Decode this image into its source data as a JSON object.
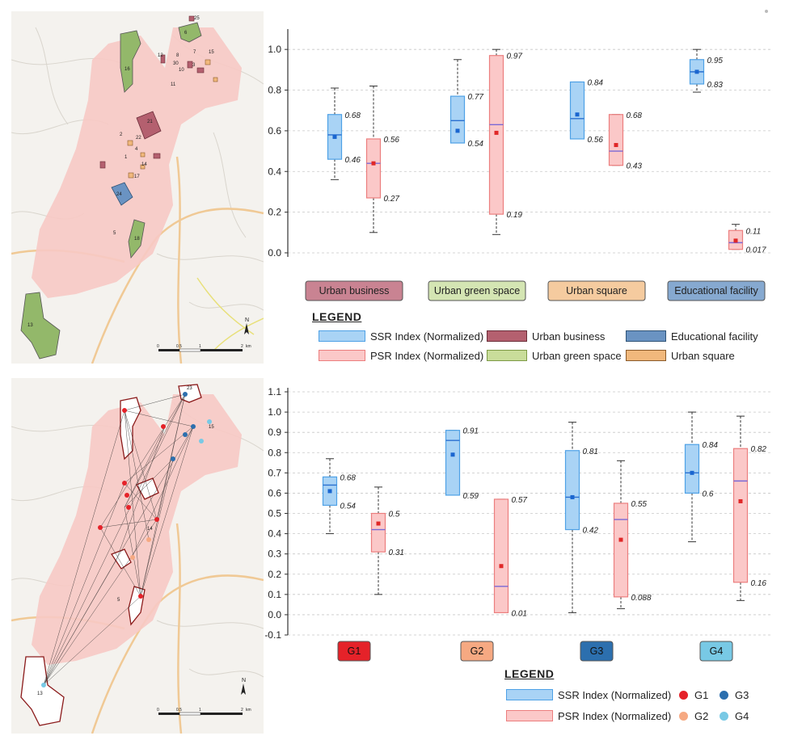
{
  "colors": {
    "ssr_fill": "#a9d3f5",
    "ssr_stroke": "#4ea1e6",
    "ssr_median": "#2a6fd0",
    "ssr_mean": "#1a66d0",
    "psr_fill": "#fbc8c8",
    "psr_stroke": "#ec7e7e",
    "psr_median": "#7a69d6",
    "psr_mean": "#e02828",
    "urban_business": "#b4606f",
    "urban_green_space": "#c9dd9a",
    "urban_square": "#f1b87c",
    "educational_facility": "#6a93c2",
    "g1": "#e52229",
    "g2": "#f6a982",
    "g3": "#2c6fae",
    "g4": "#78c9e5",
    "map_base": "#f4f2ee",
    "map_urban": "#f7c9c4",
    "map_green": "#93b86a"
  },
  "map1": {
    "north_label": "N",
    "scale_labels": [
      "0",
      "0.5",
      "1",
      "2"
    ],
    "scale_unit": "km",
    "site_labels": [
      "25",
      "6",
      "16",
      "12",
      "8",
      "7",
      "15",
      "30",
      "10",
      "3",
      "11",
      "21",
      "2",
      "22",
      "4",
      "1",
      "14",
      "17",
      "24",
      "5",
      "18",
      "13"
    ]
  },
  "map2": {
    "north_label": "N",
    "scale_labels": [
      "0",
      "0.5",
      "1",
      "2"
    ],
    "scale_unit": "km",
    "site_labels": [
      "23",
      "15",
      "14",
      "5",
      "13"
    ]
  },
  "legend1": {
    "title": "LEGEND",
    "items": [
      {
        "label": "SSR Index (Normalized)",
        "type": "ssr"
      },
      {
        "label": "PSR Index (Normalized)",
        "type": "psr"
      },
      {
        "label": "Urban business",
        "type": "urban_business"
      },
      {
        "label": "Urban green space",
        "type": "urban_green_space"
      },
      {
        "label": "Educational facility",
        "type": "educational_facility"
      },
      {
        "label": "Urban square",
        "type": "urban_square"
      }
    ]
  },
  "legend2": {
    "title": "LEGEND",
    "items": [
      {
        "label": "SSR Index (Normalized)",
        "type": "ssr"
      },
      {
        "label": "PSR Index (Normalized)",
        "type": "psr"
      },
      {
        "label": "G1",
        "type": "g1"
      },
      {
        "label": "G2",
        "type": "g2"
      },
      {
        "label": "G3",
        "type": "g3"
      },
      {
        "label": "G4",
        "type": "g4"
      }
    ]
  },
  "chart_data": [
    {
      "type": "box",
      "title": "",
      "xlabel": "",
      "ylabel": "",
      "ylim": [
        -0.02,
        1.1
      ],
      "yticks": [
        0.0,
        0.2,
        0.4,
        0.6,
        0.8,
        1.0
      ],
      "ytick_labels": [
        "0.0",
        "0.2",
        "0.4",
        "0.6",
        "0.8",
        "1.0"
      ],
      "grid": "horizontal-dashed",
      "categories": [
        {
          "label": "Urban business",
          "color": "#c98392",
          "text_color": "#222222"
        },
        {
          "label": "Urban green space",
          "color": "#d4e5b3",
          "text_color": "#222222"
        },
        {
          "label": "Urban square",
          "color": "#f5cb9f",
          "text_color": "#222222"
        },
        {
          "label": "Educational facility",
          "color": "#86a9d0",
          "text_color": "#222222"
        }
      ],
      "series": [
        {
          "name": "SSR Index (Normalized)",
          "boxes": [
            {
              "whisker_low": 0.36,
              "q1": 0.46,
              "median": 0.58,
              "q3": 0.68,
              "whisker_high": 0.81,
              "mean": 0.57,
              "q1_label": "0.46",
              "q3_label": "0.68"
            },
            {
              "whisker_low": 0.54,
              "q1": 0.54,
              "median": 0.65,
              "q3": 0.77,
              "whisker_high": 0.95,
              "mean": 0.6,
              "q1_label": "0.54",
              "q3_label": "0.77"
            },
            {
              "whisker_low": 0.56,
              "q1": 0.56,
              "median": 0.66,
              "q3": 0.84,
              "whisker_high": 0.84,
              "mean": 0.68,
              "q1_label": "0.56",
              "q3_label": "0.84"
            },
            {
              "whisker_low": 0.79,
              "q1": 0.83,
              "median": 0.89,
              "q3": 0.95,
              "whisker_high": 1.0,
              "mean": 0.89,
              "q1_label": "0.83",
              "q3_label": "0.95"
            }
          ]
        },
        {
          "name": "PSR Index (Normalized)",
          "boxes": [
            {
              "whisker_low": 0.1,
              "q1": 0.27,
              "median": 0.44,
              "q3": 0.56,
              "whisker_high": 0.82,
              "mean": 0.44,
              "q1_label": "0.27",
              "q3_label": "0.56"
            },
            {
              "whisker_low": 0.09,
              "q1": 0.19,
              "median": 0.63,
              "q3": 0.97,
              "whisker_high": 1.0,
              "mean": 0.59,
              "q1_label": "0.19",
              "q3_label": "0.97"
            },
            {
              "whisker_low": 0.43,
              "q1": 0.43,
              "median": 0.5,
              "q3": 0.68,
              "whisker_high": 0.68,
              "mean": 0.53,
              "q1_label": "0.43",
              "q3_label": "0.68"
            },
            {
              "whisker_low": 0.017,
              "q1": 0.017,
              "median": 0.05,
              "q3": 0.11,
              "whisker_high": 0.14,
              "mean": 0.06,
              "q1_label": "0.017",
              "q3_label": "0.11"
            }
          ]
        }
      ]
    },
    {
      "type": "box",
      "title": "",
      "xlabel": "",
      "ylabel": "",
      "ylim": [
        -0.1,
        1.12
      ],
      "yticks": [
        -0.1,
        0.0,
        0.1,
        0.2,
        0.3,
        0.4,
        0.5,
        0.6,
        0.7,
        0.8,
        0.9,
        1.0,
        1.1
      ],
      "ytick_labels": [
        "-0.1",
        "0.0",
        "0.1",
        "0.2",
        "0.3",
        "0.4",
        "0.5",
        "0.6",
        "0.7",
        "0.8",
        "0.9",
        "1.0",
        "1.1"
      ],
      "grid": "horizontal-dashed",
      "categories": [
        {
          "label": "G1",
          "color": "#e52229",
          "text_color": "#111111"
        },
        {
          "label": "G2",
          "color": "#f6a982",
          "text_color": "#111111"
        },
        {
          "label": "G3",
          "color": "#2c6fae",
          "text_color": "#111111"
        },
        {
          "label": "G4",
          "color": "#78c9e5",
          "text_color": "#111111"
        }
      ],
      "series": [
        {
          "name": "SSR Index (Normalized)",
          "boxes": [
            {
              "whisker_low": 0.4,
              "q1": 0.54,
              "median": 0.64,
              "q3": 0.68,
              "whisker_high": 0.77,
              "mean": 0.61,
              "q1_label": "0.54",
              "q3_label": "0.68"
            },
            {
              "whisker_low": 0.59,
              "q1": 0.59,
              "median": 0.86,
              "q3": 0.91,
              "whisker_high": 0.91,
              "mean": 0.79,
              "q1_label": "0.59",
              "q3_label": "0.91"
            },
            {
              "whisker_low": 0.01,
              "q1": 0.42,
              "median": 0.58,
              "q3": 0.81,
              "whisker_high": 0.95,
              "mean": 0.58,
              "q1_label": "0.42",
              "q3_label": "0.81"
            },
            {
              "whisker_low": 0.36,
              "q1": 0.6,
              "median": 0.7,
              "q3": 0.84,
              "whisker_high": 1.0,
              "mean": 0.7,
              "q1_label": "0.6",
              "q3_label": "0.84"
            }
          ]
        },
        {
          "name": "PSR Index (Normalized)",
          "boxes": [
            {
              "whisker_low": 0.1,
              "q1": 0.31,
              "median": 0.42,
              "q3": 0.5,
              "whisker_high": 0.63,
              "mean": 0.45,
              "q1_label": "0.31",
              "q3_label": "0.5"
            },
            {
              "whisker_low": 0.01,
              "q1": 0.01,
              "median": 0.14,
              "q3": 0.57,
              "whisker_high": 0.57,
              "mean": 0.24,
              "q1_label": "0.01",
              "q3_label": "0.57"
            },
            {
              "whisker_low": 0.03,
              "q1": 0.088,
              "median": 0.47,
              "q3": 0.55,
              "whisker_high": 0.76,
              "mean": 0.37,
              "q1_label": "0.088",
              "q3_label": "0.55"
            },
            {
              "whisker_low": 0.07,
              "q1": 0.16,
              "median": 0.66,
              "q3": 0.82,
              "whisker_high": 0.98,
              "mean": 0.56,
              "q1_label": "0.16",
              "q3_label": "0.82"
            }
          ]
        }
      ]
    }
  ]
}
